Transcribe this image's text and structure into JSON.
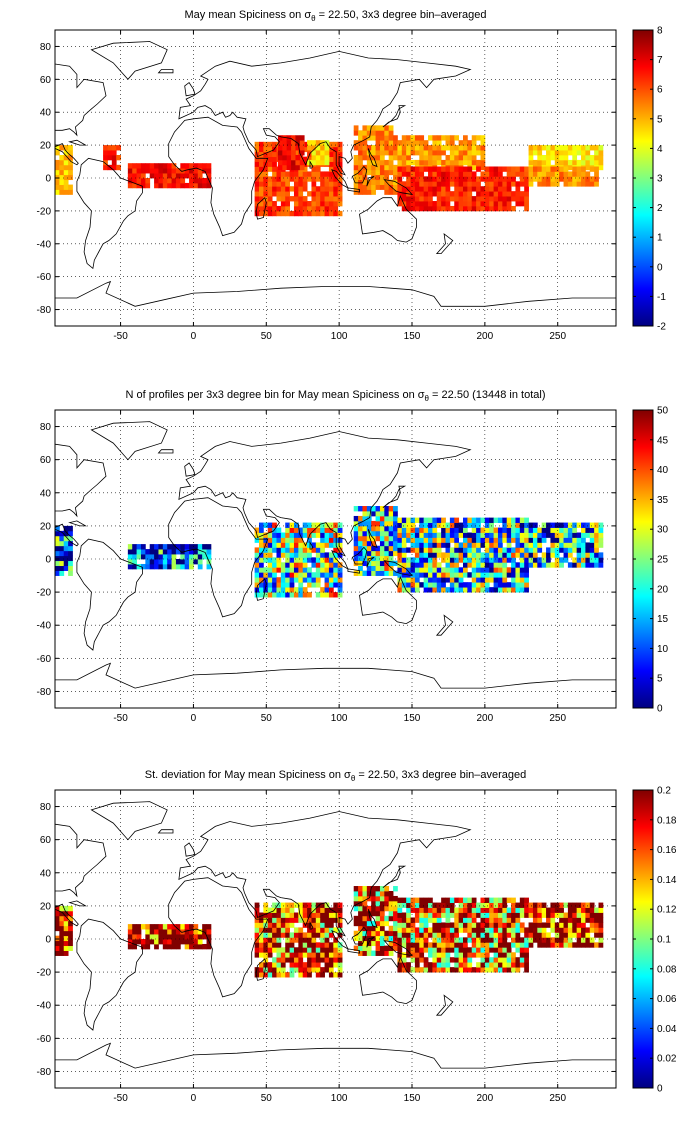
{
  "chart_data": [
    {
      "type": "heatmap",
      "title_prefix": "May mean Spiciness on σ",
      "title_sub": "θ",
      "title_suffix": " = 22.50, 3x3 degree bin–averaged",
      "xlim": [
        -95,
        290
      ],
      "ylim": [
        -90,
        90
      ],
      "x_ticks": [
        "-50",
        "0",
        "50",
        "100",
        "150",
        "200",
        "250"
      ],
      "y_ticks": [
        "-80",
        "-60",
        "-40",
        "-20",
        "0",
        "20",
        "40",
        "60",
        "80"
      ],
      "grid": true,
      "colorbar": {
        "range": [
          -2,
          8
        ],
        "ticks": [
          "-2",
          "-1",
          "0",
          "1",
          "2",
          "3",
          "4",
          "5",
          "6",
          "7",
          "8"
        ],
        "colormap": "jet"
      },
      "regions": [
        {
          "lon": [
            -95,
            -83
          ],
          "lat": [
            -10,
            18
          ],
          "value": 4.8
        },
        {
          "lon": [
            -62,
            -52
          ],
          "lat": [
            5,
            20
          ],
          "value": 6.4
        },
        {
          "lon": [
            -45,
            12
          ],
          "lat": [
            -6,
            8
          ],
          "value": 6.6
        },
        {
          "lon": [
            42,
            100
          ],
          "lat": [
            -23,
            20
          ],
          "value": 6.1
        },
        {
          "lon": [
            58,
            75
          ],
          "lat": [
            5,
            25
          ],
          "value": 6.7
        },
        {
          "lon": [
            78,
            92
          ],
          "lat": [
            8,
            22
          ],
          "value": 4.5
        },
        {
          "lon": [
            110,
            140
          ],
          "lat": [
            -10,
            30
          ],
          "value": 5.4
        },
        {
          "lon": [
            140,
            200
          ],
          "lat": [
            5,
            25
          ],
          "value": 5.2
        },
        {
          "lon": [
            140,
            230
          ],
          "lat": [
            -20,
            5
          ],
          "value": 6.4
        },
        {
          "lon": [
            230,
            280
          ],
          "lat": [
            5,
            20
          ],
          "value": 4.4
        },
        {
          "lon": [
            230,
            278
          ],
          "lat": [
            -5,
            5
          ],
          "value": 5.3
        }
      ]
    },
    {
      "type": "heatmap",
      "title_prefix": "N of profiles per 3x3 degree bin for May mean Spiciness on σ",
      "title_sub": "θ",
      "title_suffix": " = 22.50 (13448 in total)",
      "xlim": [
        -95,
        290
      ],
      "ylim": [
        -90,
        90
      ],
      "x_ticks": [
        "-50",
        "0",
        "50",
        "100",
        "150",
        "200",
        "250"
      ],
      "y_ticks": [
        "-80",
        "-60",
        "-40",
        "-20",
        "0",
        "20",
        "40",
        "60",
        "80"
      ],
      "grid": true,
      "colorbar": {
        "range": [
          0,
          50
        ],
        "ticks": [
          "0",
          "5",
          "10",
          "15",
          "20",
          "25",
          "30",
          "35",
          "40",
          "45",
          "50"
        ],
        "colormap": "jet"
      },
      "regions": [
        {
          "lon": [
            -95,
            -83
          ],
          "lat": [
            -10,
            18
          ],
          "value": 10
        },
        {
          "lon": [
            -45,
            12
          ],
          "lat": [
            -6,
            8
          ],
          "value": 6
        },
        {
          "lon": [
            42,
            100
          ],
          "lat": [
            -23,
            20
          ],
          "value": 22
        },
        {
          "lon": [
            110,
            140
          ],
          "lat": [
            -10,
            30
          ],
          "value": 20
        },
        {
          "lon": [
            140,
            230
          ],
          "lat": [
            -20,
            25
          ],
          "value": 18
        },
        {
          "lon": [
            230,
            280
          ],
          "lat": [
            -5,
            20
          ],
          "value": 14
        }
      ]
    },
    {
      "type": "heatmap",
      "title_prefix": "St. deviation for May mean Spiciness on σ",
      "title_sub": "θ",
      "title_suffix": " = 22.50, 3x3 degree bin–averaged",
      "xlim": [
        -95,
        290
      ],
      "ylim": [
        -90,
        90
      ],
      "x_ticks": [
        "-50",
        "0",
        "50",
        "100",
        "150",
        "200",
        "250"
      ],
      "y_ticks": [
        "-80",
        "-60",
        "-40",
        "-20",
        "0",
        "20",
        "40",
        "60",
        "80"
      ],
      "grid": true,
      "colorbar": {
        "range": [
          0,
          0.2
        ],
        "ticks": [
          "0",
          "0.02",
          "0.04",
          "0.06",
          "0.08",
          "0.1",
          "0.12",
          "0.14",
          "0.16",
          "0.18",
          "0.2"
        ],
        "colormap": "jet"
      },
      "regions": [
        {
          "lon": [
            -95,
            -83
          ],
          "lat": [
            -10,
            18
          ],
          "value": 0.18
        },
        {
          "lon": [
            -45,
            12
          ],
          "lat": [
            -6,
            8
          ],
          "value": 0.19
        },
        {
          "lon": [
            42,
            100
          ],
          "lat": [
            -23,
            20
          ],
          "value": 0.16
        },
        {
          "lon": [
            110,
            140
          ],
          "lat": [
            -10,
            30
          ],
          "value": 0.15
        },
        {
          "lon": [
            140,
            230
          ],
          "lat": [
            -20,
            25
          ],
          "value": 0.15
        },
        {
          "lon": [
            230,
            280
          ],
          "lat": [
            -5,
            20
          ],
          "value": 0.18
        }
      ]
    }
  ]
}
